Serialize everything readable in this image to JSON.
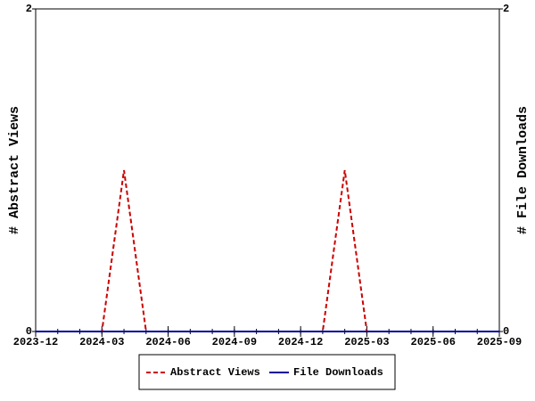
{
  "chart_data": {
    "type": "line",
    "x": [
      "2023-12",
      "2024-01",
      "2024-02",
      "2024-03",
      "2024-04",
      "2024-05",
      "2024-06",
      "2024-07",
      "2024-08",
      "2024-09",
      "2024-10",
      "2024-11",
      "2024-12",
      "2025-01",
      "2025-02",
      "2025-03",
      "2025-04",
      "2025-05",
      "2025-06",
      "2025-07",
      "2025-08",
      "2025-09"
    ],
    "series": [
      {
        "name": "Abstract Views",
        "color": "#cc0000",
        "dashed": true,
        "values": [
          0,
          0,
          0,
          0,
          1,
          0,
          0,
          0,
          0,
          0,
          0,
          0,
          0,
          0,
          1,
          0,
          0,
          0,
          0,
          0,
          0,
          0
        ]
      },
      {
        "name": "File Downloads",
        "color": "#000099",
        "dashed": false,
        "axis": "y2",
        "values": [
          0,
          0,
          0,
          0,
          0,
          0,
          0,
          0,
          0,
          0,
          0,
          0,
          0,
          0,
          0,
          0,
          0,
          0,
          0,
          0,
          0,
          0
        ]
      }
    ],
    "xlim": [
      "2023-12",
      "2025-09"
    ],
    "xticks": [
      "2023-12",
      "2024-03",
      "2024-06",
      "2024-09",
      "2024-12",
      "2025-03",
      "2025-06",
      "2025-09"
    ],
    "ylim": [
      0,
      2
    ],
    "yticks": [
      0,
      2
    ],
    "y2lim": [
      0,
      2
    ],
    "y2ticks": [
      0,
      2
    ],
    "ylabel": "# Abstract Views",
    "y2label": "# File Downloads",
    "legend": "bottom"
  }
}
